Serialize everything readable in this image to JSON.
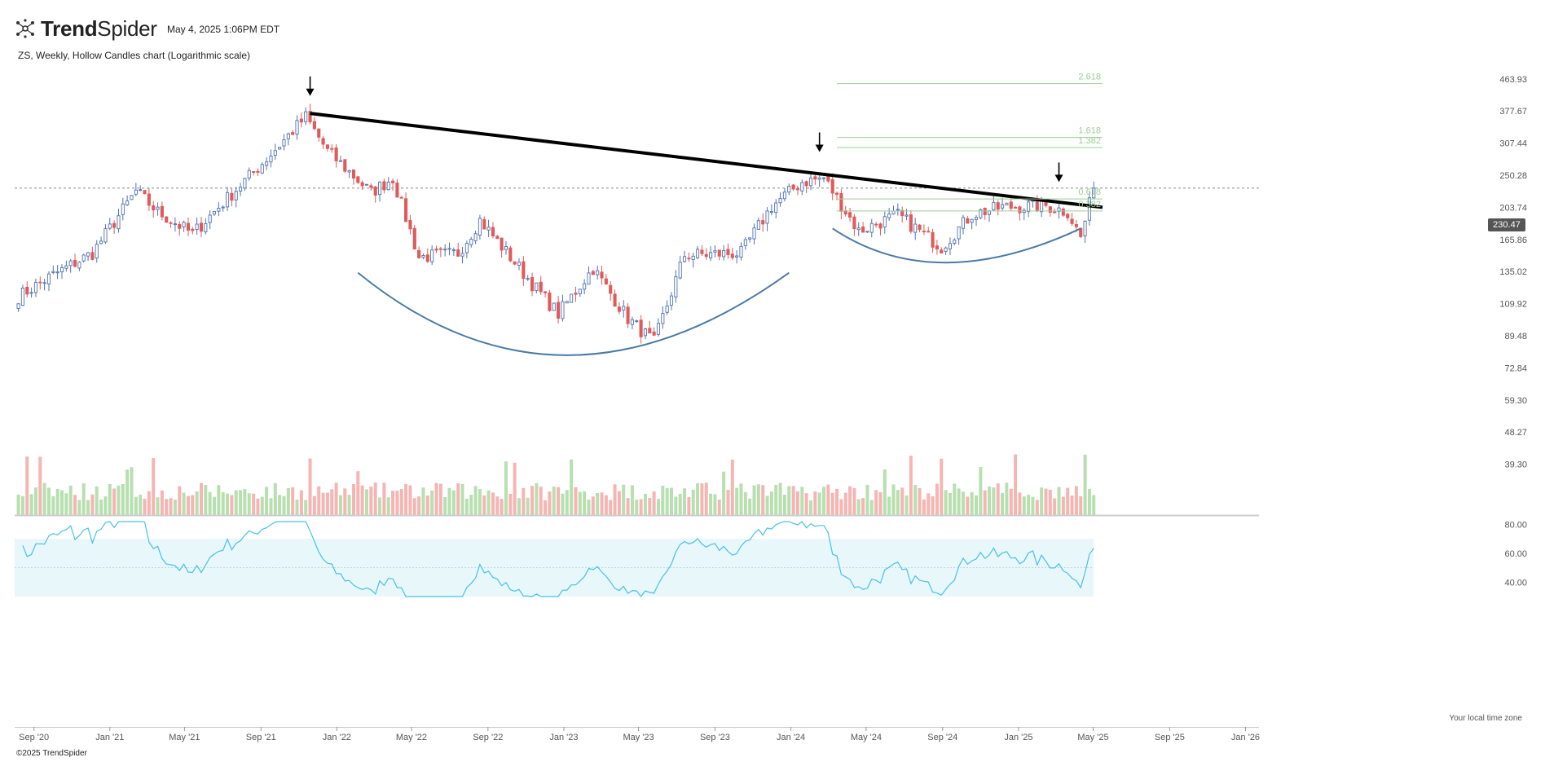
{
  "app": {
    "brand_bold": "Trend",
    "brand_light": "Spider",
    "timestamp": "May 4, 2025 1:06PM EDT"
  },
  "chart_title": "ZS, Weekly, Hollow Candles chart (Logarithmic scale)",
  "footer": {
    "copyright": "©2025 TrendSpider",
    "timezone_note": "Your local time zone"
  },
  "current_price": "230.47",
  "colors": {
    "up": "#4f73b5",
    "down": "#e05a5a",
    "vol_up": "#b7dfb0",
    "vol_down": "#f5b5b3",
    "fib": "#9bcf94",
    "arc": "#4a7aa6",
    "rsi": "#4ac0e6",
    "rsi_band": "#e8f7fa"
  },
  "icons": [
    "trendspider-logo-icon",
    "down-arrow-marker"
  ],
  "chart_data": {
    "type": "candlestick",
    "title": "ZS, Weekly, Hollow Candles chart (Logarithmic scale)",
    "scale": "log",
    "price_axis_ticks": [
      "463.93",
      "377.67",
      "307.44",
      "250.28",
      "203.74",
      "165.86",
      "135.02",
      "109.92",
      "89.48",
      "72.84",
      "59.30",
      "48.27",
      "39.30"
    ],
    "x_axis_ticks": [
      "Sep '20",
      "Jan '21",
      "May '21",
      "Sep '21",
      "Jan '22",
      "May '22",
      "Sep '22",
      "Jan '23",
      "May '23",
      "Sep '23",
      "Jan '24",
      "May '24",
      "Sep '24",
      "Jan '25",
      "May '25",
      "Sep '25",
      "Jan '26"
    ],
    "price_ylim": [
      33,
      520
    ],
    "price_waypoints": [
      {
        "date": "2020-08-07",
        "close": 115
      },
      {
        "date": "2020-09-25",
        "close": 130
      },
      {
        "date": "2020-12-04",
        "close": 152
      },
      {
        "date": "2021-02-12",
        "close": 226
      },
      {
        "date": "2021-03-19",
        "close": 198
      },
      {
        "date": "2021-05-14",
        "close": 172
      },
      {
        "date": "2021-07-09",
        "close": 216
      },
      {
        "date": "2021-09-10",
        "close": 278
      },
      {
        "date": "2021-11-12",
        "close": 364
      },
      {
        "date": "2021-12-17",
        "close": 292
      },
      {
        "date": "2022-02-25",
        "close": 224
      },
      {
        "date": "2022-04-01",
        "close": 246
      },
      {
        "date": "2022-05-13",
        "close": 148
      },
      {
        "date": "2022-07-15",
        "close": 152
      },
      {
        "date": "2022-08-19",
        "close": 188
      },
      {
        "date": "2022-11-11",
        "close": 125
      },
      {
        "date": "2022-12-23",
        "close": 103
      },
      {
        "date": "2023-02-17",
        "close": 138
      },
      {
        "date": "2023-04-14",
        "close": 100
      },
      {
        "date": "2023-05-26",
        "close": 86
      },
      {
        "date": "2023-07-14",
        "close": 150
      },
      {
        "date": "2023-10-13",
        "close": 152
      },
      {
        "date": "2023-12-01",
        "close": 205
      },
      {
        "date": "2024-01-19",
        "close": 240
      },
      {
        "date": "2024-02-23",
        "close": 246
      },
      {
        "date": "2024-04-19",
        "close": 175
      },
      {
        "date": "2024-06-21",
        "close": 194
      },
      {
        "date": "2024-08-30",
        "close": 158
      },
      {
        "date": "2024-10-18",
        "close": 195
      },
      {
        "date": "2024-12-06",
        "close": 204
      },
      {
        "date": "2025-02-14",
        "close": 206
      },
      {
        "date": "2025-03-21",
        "close": 198
      },
      {
        "date": "2025-04-11",
        "close": 168
      },
      {
        "date": "2025-05-02",
        "close": 230.47
      }
    ],
    "trendline": [
      {
        "date": "2021-11-19",
        "value": 372
      },
      {
        "date": "2025-05-16",
        "value": 203.74
      }
    ],
    "fibonacci": {
      "levels": [
        "2.618",
        "1.618",
        "1.382",
        "0.618",
        "0.382"
      ],
      "values": [
        450,
        319,
        299,
        215,
        199
      ],
      "from": "2024-03-15",
      "to": "2025-05-16"
    },
    "arrows": [
      "2021-11-19",
      "2024-02-16",
      "2025-03-07"
    ],
    "cup_arcs": [
      {
        "from": "2022-02-04",
        "bottom": "2023-01-06",
        "bottom_value": 79,
        "to": "2023-12-29",
        "end_value": 134
      },
      {
        "from": "2024-03-08",
        "bottom": "2024-09-06",
        "bottom_value": 143,
        "to": "2025-04-11",
        "end_value": 178
      }
    ],
    "volume": {
      "series": "weekly volume",
      "scale_max": 1.0
    },
    "rsi": {
      "axis_ticks": [
        "80.00",
        "60.00",
        "40.00"
      ],
      "ylim": [
        30,
        82
      ],
      "band": [
        30,
        70
      ]
    }
  }
}
